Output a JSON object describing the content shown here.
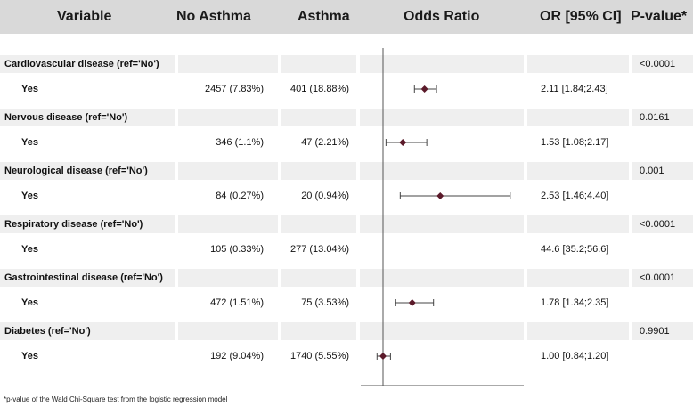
{
  "header": {
    "variable": "Variable",
    "no_asthma": "No Asthma",
    "asthma": "Asthma",
    "odds_ratio": "Odds Ratio",
    "or_ci": "OR [95% CI]",
    "pvalue": "P-value*"
  },
  "colors": {
    "marker": "#5b1a2a",
    "band": "#efefef",
    "header": "#d9d9d9"
  },
  "chart_data": {
    "type": "forest",
    "reference_line": 1,
    "rows": [
      {
        "category": "Cardiovascular disease (ref='No')",
        "level": "Yes",
        "no_asthma": "2457 (7.83%)",
        "asthma": "401 (18.88%)",
        "or_text": "2.11 [1.84;2.43]",
        "pvalue": "<0.0001",
        "or": 2.11,
        "lo": 1.84,
        "hi": 2.43
      },
      {
        "category": "Nervous disease (ref='No')",
        "level": "Yes",
        "no_asthma": "346 (1.1%)",
        "asthma": "47 (2.21%)",
        "or_text": "1.53 [1.08;2.17]",
        "pvalue": "0.0161",
        "or": 1.53,
        "lo": 1.08,
        "hi": 2.17
      },
      {
        "category": "Neurological disease (ref='No')",
        "level": "Yes",
        "no_asthma": "84 (0.27%)",
        "asthma": "20 (0.94%)",
        "or_text": "2.53 [1.46;4.40]",
        "pvalue": "0.001",
        "or": 2.53,
        "lo": 1.46,
        "hi": 4.4
      },
      {
        "category": "Respiratory disease (ref='No')",
        "level": "Yes",
        "no_asthma": "105 (0.33%)",
        "asthma": "277 (13.04%)",
        "or_text": "44.6 [35.2;56.6]",
        "pvalue": "<0.0001",
        "or": 44.6,
        "lo": 35.2,
        "hi": 56.6
      },
      {
        "category": "Gastrointestinal disease (ref='No')",
        "level": "Yes",
        "no_asthma": "472 (1.51%)",
        "asthma": "75 (3.53%)",
        "or_text": "1.78 [1.34;2.35]",
        "pvalue": "<0.0001",
        "or": 1.78,
        "lo": 1.34,
        "hi": 2.35
      },
      {
        "category": "Diabetes (ref='No')",
        "level": "Yes",
        "no_asthma": "192 (9.04%)",
        "asthma": "1740 (5.55%)",
        "or_text": "1.00 [0.84;1.20]",
        "pvalue": "0.9901",
        "or": 1.0,
        "lo": 0.84,
        "hi": 1.2
      }
    ]
  },
  "footnote": "*p-value of the Wald Chi-Square test from the logistic regression model"
}
